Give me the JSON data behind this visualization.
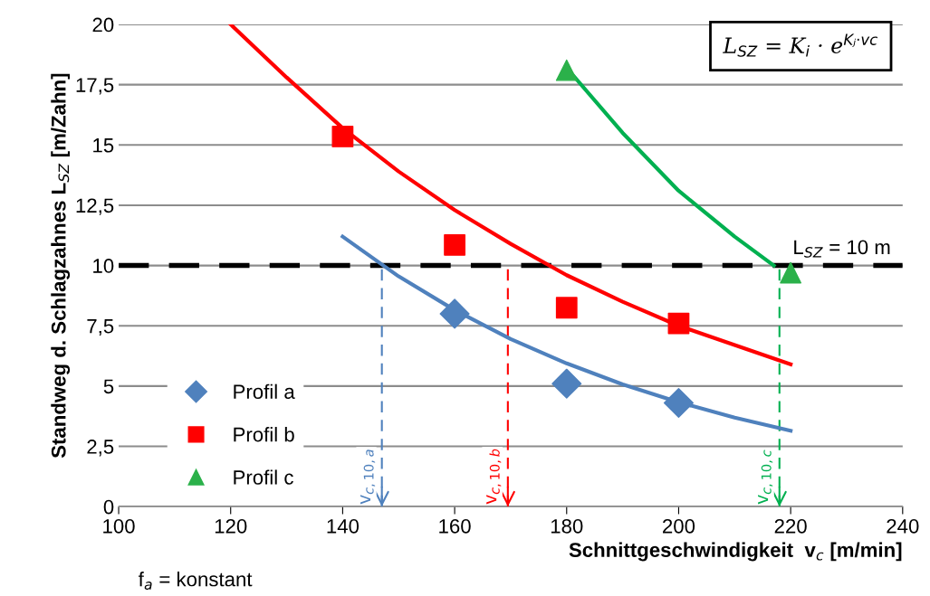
{
  "chart_data": {
    "type": "scatter",
    "xlabel": "Schnittgeschwindigkeit  v$_{c}$ [m/min]",
    "ylabel": "Standweg d. Schlagzahnes L$_{SZ}$ [m/Zahn]",
    "xlim": [
      100,
      240
    ],
    "xticks": [
      100,
      120,
      140,
      160,
      180,
      200,
      220,
      240
    ],
    "ylim": [
      0,
      20
    ],
    "yticks": [
      0,
      {
        "value": 2.5,
        "label": "2,5"
      },
      5,
      {
        "value": 7.5,
        "label": "7,5"
      },
      10,
      {
        "value": 12.5,
        "label": "12,5"
      },
      15,
      {
        "value": 17.5,
        "label": "17,5"
      },
      20
    ],
    "grid": "y",
    "legend": "bottom left",
    "series": [
      {
        "name": "Profil a",
        "marker": "diamond",
        "color": "#4f81bd",
        "x": [
          160,
          180,
          200
        ],
        "values": [
          8.0,
          5.1,
          4.3
        ]
      },
      {
        "name": "Profil b",
        "marker": "square",
        "color": "#ff0000",
        "x": [
          140,
          160,
          180,
          200
        ],
        "values": [
          15.35,
          10.85,
          8.25,
          7.6
        ]
      },
      {
        "name": "Profil c",
        "marker": "triangle",
        "color": "#2bb14a",
        "x": [
          180,
          220
        ],
        "values": [
          18.1,
          9.7
        ]
      },
      {
        "type": "line",
        "color": "#4f81bd",
        "x": [
          140,
          150,
          160,
          170,
          180,
          190,
          200,
          210,
          220
        ],
        "values": [
          11.2,
          9.55,
          8.15,
          6.95,
          5.94,
          5.07,
          4.33,
          3.69,
          3.15
        ]
      },
      {
        "type": "line",
        "color": "#ff0000",
        "x": [
          120,
          130,
          140,
          150,
          160,
          170,
          180,
          190,
          200,
          210,
          220
        ],
        "values": [
          20.0,
          17.8,
          15.7,
          13.9,
          12.3,
          10.9,
          9.6,
          8.5,
          7.5,
          6.7,
          5.9
        ]
      },
      {
        "type": "line",
        "color": "#00b050",
        "x": [
          180,
          190,
          200,
          210,
          217
        ],
        "values": [
          18.2,
          15.5,
          13.1,
          11.2,
          10.0
        ]
      }
    ],
    "ref_lines": [
      {
        "axis": "y",
        "value": 10,
        "label": "L$_{SZ}$ = 10 m",
        "color": "#000000",
        "line_style": "dashed"
      },
      {
        "axis": "x",
        "value": 147,
        "label": "v$_{c,10,a}$",
        "color": "#4f81bd",
        "line_style": "dashed"
      },
      {
        "axis": "x",
        "value": 169.5,
        "label": "v$_{c,10,b}$",
        "color": "#ff0000",
        "line_style": "dashed"
      },
      {
        "axis": "x",
        "value": 218,
        "label": "v$_{c,10,c}$",
        "color": "#00b050",
        "line_style": "dashed"
      }
    ],
    "annotations": [
      "L$_{SZ}$ = K$_{i}$ · e$^{Kⱼ·vc}$",
      "f$_{a}$ = konstant"
    ]
  }
}
